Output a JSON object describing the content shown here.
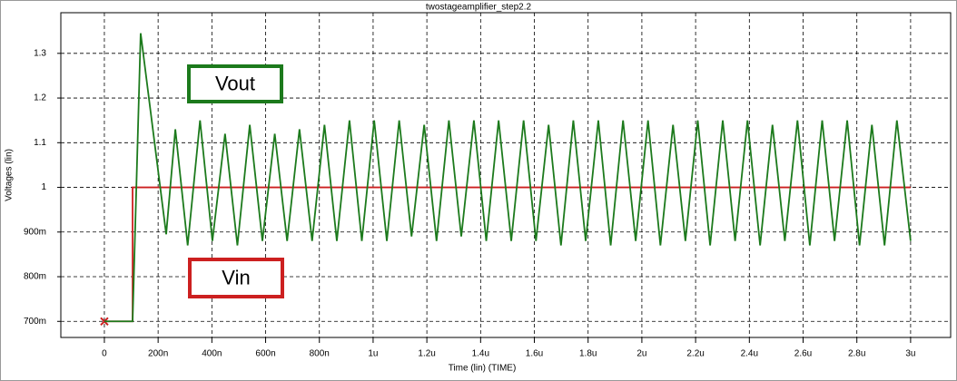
{
  "chart_data": {
    "type": "line",
    "title": "twostageamplifier_step2.2",
    "x_label": "Time (lin) (TIME)",
    "y_label": "Voltages (lin)",
    "xlim": [
      -1.62e-07,
      3.149e-06
    ],
    "ylim": [
      0.664,
      1.391
    ],
    "xticks": [
      0,
      {
        "value": 2e-07,
        "label": "200n"
      },
      {
        "value": 4e-07,
        "label": "400n"
      },
      {
        "value": 6e-07,
        "label": "600n"
      },
      {
        "value": 8e-07,
        "label": "800n"
      },
      {
        "value": 1e-06,
        "label": "1u"
      },
      {
        "value": 1.2e-06,
        "label": "1.2u"
      },
      {
        "value": 1.4e-06,
        "label": "1.4u"
      },
      {
        "value": 1.6e-06,
        "label": "1.6u"
      },
      {
        "value": 1.8e-06,
        "label": "1.8u"
      },
      {
        "value": 2e-06,
        "label": "2u"
      },
      {
        "value": 2.2e-06,
        "label": "2.2u"
      },
      {
        "value": 2.4e-06,
        "label": "2.4u"
      },
      {
        "value": 2.6e-06,
        "label": "2.6u"
      },
      {
        "value": 2.8e-06,
        "label": "2.8u"
      },
      {
        "value": 3e-06,
        "label": "3u"
      }
    ],
    "yticks": [
      {
        "value": 0.7,
        "label": "700m"
      },
      {
        "value": 0.8,
        "label": "800m"
      },
      {
        "value": 0.9,
        "label": "900m"
      },
      1,
      1.1,
      1.2,
      1.3
    ],
    "grid": true,
    "series": [
      {
        "name": "Vout",
        "color": "#1c7a1c",
        "x": [
          0,
          1.05e-07,
          1.35e-07,
          2.3e-07,
          2.64e-07,
          3.1e-07,
          3.56e-07,
          4.02e-07,
          4.49e-07,
          4.95e-07,
          5.41e-07,
          5.88e-07,
          6.34e-07,
          6.8e-07,
          7.26e-07,
          7.73e-07,
          8.19e-07,
          8.65e-07,
          9.12e-07,
          9.58e-07,
          1.004e-06,
          1.051e-06,
          1.097e-06,
          1.143e-06,
          1.19e-06,
          1.236e-06,
          1.282e-06,
          1.328e-06,
          1.375e-06,
          1.421e-06,
          1.467e-06,
          1.514e-06,
          1.56e-06,
          1.606e-06,
          1.653e-06,
          1.699e-06,
          1.745e-06,
          1.791e-06,
          1.838e-06,
          1.884e-06,
          1.93e-06,
          1.977e-06,
          2.023e-06,
          2.069e-06,
          2.116e-06,
          2.162e-06,
          2.208e-06,
          2.254e-06,
          2.301e-06,
          2.347e-06,
          2.393e-06,
          2.44e-06,
          2.486e-06,
          2.532e-06,
          2.579e-06,
          2.625e-06,
          2.671e-06,
          2.717e-06,
          2.764e-06,
          2.81e-06,
          2.856e-06,
          2.903e-06,
          2.949e-06,
          3e-06
        ],
        "values": [
          0.7,
          0.7,
          1.345,
          0.895,
          1.13,
          0.87,
          1.15,
          0.88,
          1.12,
          0.87,
          1.14,
          0.88,
          1.12,
          0.88,
          1.13,
          0.88,
          1.14,
          0.88,
          1.15,
          0.88,
          1.15,
          0.88,
          1.15,
          0.89,
          1.14,
          0.88,
          1.15,
          0.89,
          1.15,
          0.88,
          1.15,
          0.88,
          1.15,
          0.88,
          1.14,
          0.87,
          1.15,
          0.88,
          1.15,
          0.87,
          1.15,
          0.88,
          1.15,
          0.87,
          1.14,
          0.88,
          1.15,
          0.87,
          1.15,
          0.88,
          1.15,
          0.87,
          1.14,
          0.88,
          1.15,
          0.87,
          1.15,
          0.88,
          1.15,
          0.87,
          1.14,
          0.87,
          1.15,
          0.88
        ]
      },
      {
        "name": "Vin",
        "color": "#cc2020",
        "start_marker": true,
        "x": [
          0,
          1.05e-07,
          1.05e-07,
          3e-06
        ],
        "values": [
          0.7,
          0.7,
          1,
          1
        ]
      }
    ]
  }
}
